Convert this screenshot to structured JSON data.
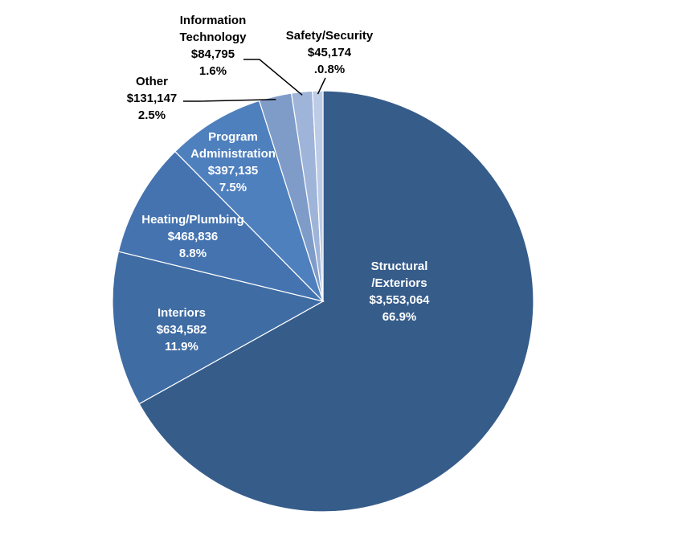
{
  "chart_data": {
    "type": "pie",
    "title": "",
    "slices": [
      {
        "name": "Structural/Exteriors",
        "label_lines": [
          "Structural",
          "/Exteriors"
        ],
        "amount": "$3,553,064",
        "percent_label": "66.9%",
        "value": 66.9,
        "color": "#365C8A"
      },
      {
        "name": "Interiors",
        "label_lines": [
          "Interiors"
        ],
        "amount": "$634,582",
        "percent_label": "11.9%",
        "value": 11.9,
        "color": "#3F6CA3"
      },
      {
        "name": "Heating/Plumbing",
        "label_lines": [
          "Heating/Plumbing"
        ],
        "amount": "$468,836",
        "percent_label": "8.8%",
        "value": 8.8,
        "color": "#4473B0"
      },
      {
        "name": "Program Administration",
        "label_lines": [
          "Program",
          "Administration"
        ],
        "amount": "$397,135",
        "percent_label": "7.5%",
        "value": 7.5,
        "color": "#4F80BE"
      },
      {
        "name": "Other",
        "label_lines": [
          "Other"
        ],
        "amount": "$131,147",
        "percent_label": "2.5%",
        "value": 2.5,
        "color": "#7F9CC9"
      },
      {
        "name": "Information Technology",
        "label_lines": [
          "Information",
          "Technology"
        ],
        "amount": "$84,795",
        "percent_label": "1.6%",
        "value": 1.6,
        "color": "#9FB4D9"
      },
      {
        "name": "Safety/Security",
        "label_lines": [
          "Safety/Security"
        ],
        "amount": "$45,174",
        "percent_label": ".0.8%",
        "value": 0.8,
        "color": "#BCCBE6"
      }
    ]
  }
}
